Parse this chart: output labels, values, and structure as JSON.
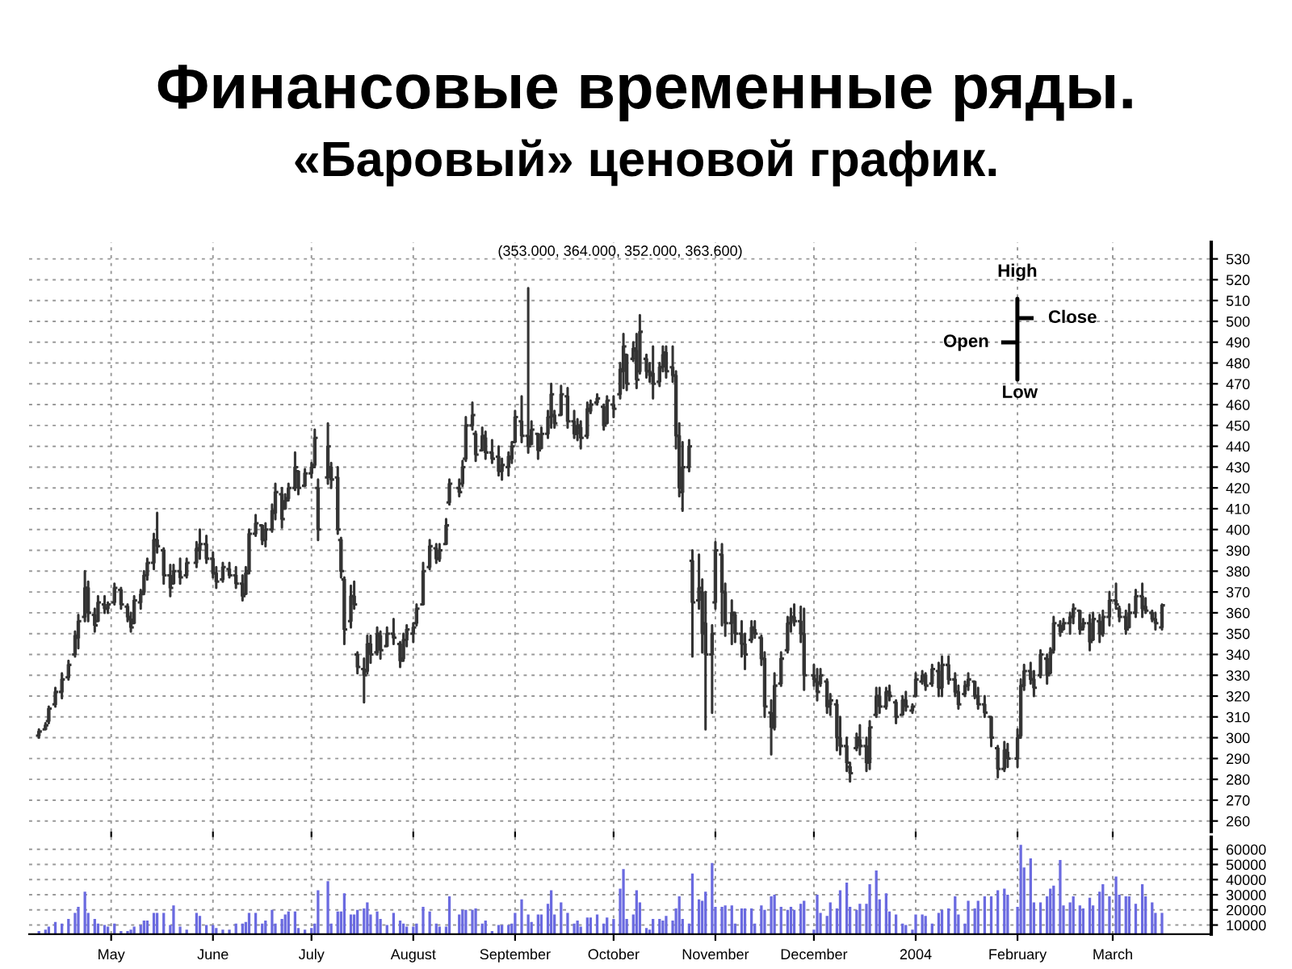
{
  "chart_data": [
    {
      "type": "candlestick",
      "title": "Финансовые временные ряды.",
      "subtitle": "«Баровый» ценовой график.",
      "annotations": [
        "(353.000, 364.000, 352.000, 363.600)",
        "High",
        "Close",
        "Open",
        "Low"
      ],
      "color": "#333333",
      "x": [
        "2003-04-09",
        "2003-04-11",
        "2003-04-12",
        "2003-04-14",
        "2003-04-16",
        "2003-04-18",
        "2003-04-20",
        "2003-04-21",
        "2003-04-23",
        "2003-04-24",
        "2003-04-26",
        "2003-04-27",
        "2003-04-29",
        "2003-04-30",
        "2003-05-02",
        "2003-05-04",
        "2003-05-06",
        "2003-05-07",
        "2003-05-08",
        "2003-05-10",
        "2003-05-11",
        "2003-05-12",
        "2003-05-14",
        "2003-05-15",
        "2003-05-17",
        "2003-05-19",
        "2003-05-20",
        "2003-05-22",
        "2003-05-24",
        "2003-05-27",
        "2003-05-28",
        "2003-05-30",
        "2003-06-01",
        "2003-06-02",
        "2003-06-04",
        "2003-06-06",
        "2003-06-08",
        "2003-06-10",
        "2003-06-11",
        "2003-06-12",
        "2003-06-14",
        "2003-06-16",
        "2003-06-17",
        "2003-06-19",
        "2003-06-20",
        "2003-06-22",
        "2003-06-23",
        "2003-06-24",
        "2003-06-26",
        "2003-06-27",
        "2003-06-29",
        "2003-07-01",
        "2003-07-02",
        "2003-07-03",
        "2003-07-06",
        "2003-07-07",
        "2003-07-09",
        "2003-07-10",
        "2003-07-11",
        "2003-07-13",
        "2003-07-14",
        "2003-07-15",
        "2003-07-17",
        "2003-07-18",
        "2003-07-19",
        "2003-07-21",
        "2003-07-22",
        "2003-07-24",
        "2003-07-26",
        "2003-07-28",
        "2003-07-29",
        "2003-07-30",
        "2003-08-01",
        "2003-08-02",
        "2003-08-04",
        "2003-08-06",
        "2003-08-08",
        "2003-08-09",
        "2003-08-11",
        "2003-08-12",
        "2003-08-15",
        "2003-08-16",
        "2003-08-17",
        "2003-08-19",
        "2003-08-20",
        "2003-08-22",
        "2003-08-23",
        "2003-08-25",
        "2003-08-27",
        "2003-08-28",
        "2003-08-30",
        "2003-08-31",
        "2003-09-01",
        "2003-09-03",
        "2003-09-05",
        "2003-09-06",
        "2003-09-08",
        "2003-09-09",
        "2003-09-11",
        "2003-09-12",
        "2003-09-13",
        "2003-09-15",
        "2003-09-17",
        "2003-09-19",
        "2003-09-20",
        "2003-09-21",
        "2003-09-23",
        "2003-09-24",
        "2003-09-26",
        "2003-09-28",
        "2003-09-29",
        "2003-10-01",
        "2003-10-03",
        "2003-10-04",
        "2003-10-05",
        "2003-10-07",
        "2003-10-08",
        "2003-10-09",
        "2003-10-11",
        "2003-10-12",
        "2003-10-13",
        "2003-10-15",
        "2003-10-16",
        "2003-10-17",
        "2003-10-19",
        "2003-10-20",
        "2003-10-21",
        "2003-10-22",
        "2003-10-24",
        "2003-10-25",
        "2003-10-27",
        "2003-10-28",
        "2003-10-29",
        "2003-10-31",
        "2003-11-01",
        "2003-11-03",
        "2003-11-04",
        "2003-11-06",
        "2003-11-07",
        "2003-11-09",
        "2003-11-10",
        "2003-11-12",
        "2003-11-13",
        "2003-11-15",
        "2003-11-16",
        "2003-11-18",
        "2003-11-19",
        "2003-11-21",
        "2003-11-23",
        "2003-11-24",
        "2003-11-25",
        "2003-11-27",
        "2003-11-28",
        "2003-12-01",
        "2003-12-02",
        "2003-12-03",
        "2003-12-05",
        "2003-12-06",
        "2003-12-08",
        "2003-12-09",
        "2003-12-11",
        "2003-12-12",
        "2003-12-14",
        "2003-12-15",
        "2003-12-17",
        "2003-12-18",
        "2003-12-20",
        "2003-12-21",
        "2003-12-23",
        "2003-12-24",
        "2003-12-26",
        "2003-12-28",
        "2003-12-29",
        "2003-12-31",
        "2004-01-01",
        "2004-01-03",
        "2004-01-04",
        "2004-01-06",
        "2004-01-08",
        "2004-01-09",
        "2004-01-11",
        "2004-01-13",
        "2004-01-14",
        "2004-01-16",
        "2004-01-17",
        "2004-01-19",
        "2004-01-20",
        "2004-01-22",
        "2004-01-24",
        "2004-01-26",
        "2004-01-28",
        "2004-01-29",
        "2004-02-01",
        "2004-02-02",
        "2004-02-03",
        "2004-02-05",
        "2004-02-06",
        "2004-02-08",
        "2004-02-10",
        "2004-02-11",
        "2004-02-12",
        "2004-02-14",
        "2004-02-15",
        "2004-02-17",
        "2004-02-18",
        "2004-02-20",
        "2004-02-21",
        "2004-02-23",
        "2004-02-24",
        "2004-02-26",
        "2004-02-27",
        "2004-02-29",
        "2004-03-02",
        "2004-03-03",
        "2004-03-05",
        "2004-03-06",
        "2004-03-08",
        "2004-03-10",
        "2004-03-11",
        "2004-03-13",
        "2004-03-14",
        "2004-03-16"
      ],
      "ohlc": [
        [
          301,
          304,
          300,
          303
        ],
        [
          304,
          307,
          304,
          306
        ],
        [
          308,
          315,
          307,
          314
        ],
        [
          316,
          324,
          315,
          322
        ],
        [
          322,
          331,
          319,
          328
        ],
        [
          329,
          337,
          328,
          335
        ],
        [
          340,
          351,
          339,
          349
        ],
        [
          348,
          359,
          343,
          356
        ],
        [
          358,
          380,
          356,
          372
        ],
        [
          372,
          375,
          356,
          360
        ],
        [
          359,
          362,
          351,
          354
        ],
        [
          356,
          368,
          356,
          365
        ],
        [
          364,
          368,
          360,
          362
        ],
        [
          362,
          365,
          360,
          364
        ],
        [
          365,
          374,
          364,
          372
        ],
        [
          371,
          372,
          362,
          364
        ],
        [
          363,
          364,
          356,
          358
        ],
        [
          357,
          360,
          351,
          353
        ],
        [
          355,
          368,
          355,
          366
        ],
        [
          365,
          371,
          362,
          369
        ],
        [
          370,
          380,
          369,
          378
        ],
        [
          378,
          386,
          376,
          384
        ],
        [
          384,
          398,
          381,
          395
        ],
        [
          395,
          408,
          389,
          392
        ],
        [
          390,
          391,
          374,
          378
        ],
        [
          378,
          383,
          368,
          372
        ],
        [
          374,
          383,
          374,
          380
        ],
        [
          380,
          386,
          374,
          377
        ],
        [
          378,
          386,
          377,
          384
        ],
        [
          384,
          394,
          382,
          391
        ],
        [
          390,
          400,
          386,
          393
        ],
        [
          393,
          397,
          384,
          386
        ],
        [
          386,
          389,
          377,
          379
        ],
        [
          379,
          382,
          372,
          375
        ],
        [
          376,
          384,
          375,
          382
        ],
        [
          381,
          384,
          377,
          378
        ],
        [
          378,
          382,
          372,
          374
        ],
        [
          374,
          378,
          366,
          368
        ],
        [
          369,
          382,
          369,
          379
        ],
        [
          380,
          400,
          379,
          398
        ],
        [
          398,
          407,
          397,
          403
        ],
        [
          402,
          402,
          393,
          395
        ],
        [
          395,
          403,
          392,
          400
        ],
        [
          400,
          412,
          399,
          409
        ],
        [
          408,
          422,
          405,
          418
        ],
        [
          417,
          420,
          401,
          405
        ],
        [
          410,
          417,
          410,
          414
        ],
        [
          415,
          422,
          414,
          420
        ],
        [
          420,
          437,
          419,
          430
        ],
        [
          428,
          428,
          417,
          420
        ],
        [
          421,
          429,
          421,
          427
        ],
        [
          427,
          432,
          425,
          430
        ],
        [
          431,
          448,
          430,
          444
        ],
        [
          420,
          424,
          395,
          400
        ],
        [
          425,
          451,
          422,
          440
        ],
        [
          430,
          432,
          420,
          424
        ],
        [
          425,
          430,
          398,
          400
        ],
        [
          395,
          396,
          377,
          380
        ],
        [
          376,
          377,
          345,
          352
        ],
        [
          356,
          373,
          353,
          368
        ],
        [
          368,
          375,
          362,
          364
        ],
        [
          340,
          341,
          331,
          334
        ],
        [
          333,
          338,
          317,
          330
        ],
        [
          332,
          349,
          331,
          345
        ],
        [
          345,
          349,
          336,
          340
        ],
        [
          341,
          353,
          340,
          350
        ],
        [
          349,
          351,
          338,
          342
        ],
        [
          344,
          353,
          344,
          350
        ],
        [
          350,
          357,
          345,
          348
        ],
        [
          345,
          346,
          334,
          337
        ],
        [
          338,
          350,
          337,
          347
        ],
        [
          347,
          354,
          344,
          352
        ],
        [
          350,
          355,
          346,
          353
        ],
        [
          355,
          364,
          354,
          362
        ],
        [
          364,
          384,
          364,
          380
        ],
        [
          382,
          395,
          381,
          392
        ],
        [
          391,
          393,
          384,
          386
        ],
        [
          386,
          393,
          385,
          390
        ],
        [
          393,
          405,
          393,
          402
        ],
        [
          413,
          424,
          412,
          422
        ],
        [
          420,
          424,
          416,
          418
        ],
        [
          422,
          433,
          421,
          430
        ],
        [
          434,
          454,
          433,
          450
        ],
        [
          450,
          461,
          448,
          455
        ],
        [
          446,
          447,
          433,
          436
        ],
        [
          438,
          449,
          438,
          445
        ],
        [
          444,
          447,
          434,
          437
        ],
        [
          437,
          443,
          432,
          434
        ],
        [
          435,
          440,
          426,
          428
        ],
        [
          428,
          434,
          424,
          431
        ],
        [
          430,
          437,
          426,
          435
        ],
        [
          434,
          442,
          432,
          440
        ],
        [
          442,
          457,
          442,
          454
        ],
        [
          452,
          464,
          442,
          445
        ],
        [
          445,
          516,
          437,
          440
        ],
        [
          441,
          452,
          441,
          448
        ],
        [
          446,
          446,
          434,
          438
        ],
        [
          439,
          449,
          439,
          446
        ],
        [
          446,
          457,
          444,
          454
        ],
        [
          454,
          470,
          449,
          465
        ],
        [
          455,
          457,
          449,
          451
        ],
        [
          455,
          469,
          455,
          465
        ],
        [
          464,
          468,
          449,
          452
        ],
        [
          452,
          457,
          444,
          446
        ],
        [
          446,
          453,
          443,
          450
        ],
        [
          449,
          452,
          439,
          444
        ],
        [
          445,
          461,
          444,
          458
        ],
        [
          457,
          462,
          456,
          460
        ],
        [
          461,
          465,
          460,
          463
        ],
        [
          459,
          460,
          448,
          450
        ],
        [
          451,
          464,
          451,
          462
        ],
        [
          460,
          464,
          454,
          458
        ],
        [
          465,
          480,
          463,
          477
        ],
        [
          476,
          494,
          468,
          488
        ],
        [
          484,
          484,
          467,
          470
        ],
        [
          482,
          490,
          481,
          487
        ],
        [
          486,
          494,
          468,
          472
        ],
        [
          476,
          503,
          475,
          495
        ],
        [
          482,
          484,
          473,
          476
        ],
        [
          476,
          480,
          471,
          474
        ],
        [
          475,
          488,
          463,
          470
        ],
        [
          471,
          480,
          469,
          478
        ],
        [
          478,
          488,
          476,
          484
        ],
        [
          485,
          488,
          473,
          476
        ],
        [
          478,
          488,
          471,
          474
        ],
        [
          474,
          476,
          439,
          445
        ],
        [
          445,
          451,
          416,
          420
        ],
        [
          418,
          442,
          409,
          430
        ],
        [
          430,
          443,
          428,
          440
        ],
        [
          385,
          390,
          339,
          365
        ],
        [
          366,
          388,
          362,
          372
        ],
        [
          370,
          376,
          341,
          350
        ],
        [
          355,
          370,
          304,
          340
        ],
        [
          340,
          354,
          312,
          350
        ],
        [
          365,
          394,
          362,
          390
        ],
        [
          388,
          393,
          354,
          370
        ],
        [
          370,
          374,
          349,
          355
        ],
        [
          355,
          366,
          345,
          360
        ],
        [
          359,
          360,
          346,
          350
        ],
        [
          350,
          356,
          339,
          345
        ],
        [
          345,
          350,
          333,
          340
        ],
        [
          347,
          356,
          346,
          353
        ],
        [
          352,
          356,
          348,
          350
        ],
        [
          348,
          349,
          335,
          338
        ],
        [
          338,
          341,
          310,
          315
        ],
        [
          312,
          318,
          292,
          305
        ],
        [
          305,
          331,
          304,
          325
        ],
        [
          326,
          341,
          325,
          338
        ],
        [
          342,
          358,
          341,
          355
        ],
        [
          355,
          362,
          351,
          358
        ],
        [
          358,
          364,
          354,
          356
        ],
        [
          356,
          363,
          346,
          350
        ],
        [
          350,
          362,
          323,
          330
        ],
        [
          330,
          335,
          325,
          328
        ],
        [
          327,
          333,
          318,
          322
        ],
        [
          326,
          333,
          325,
          330
        ],
        [
          327,
          328,
          312,
          315
        ],
        [
          316,
          321,
          311,
          318
        ],
        [
          316,
          318,
          294,
          300
        ],
        [
          300,
          310,
          292,
          296
        ],
        [
          296,
          300,
          284,
          288
        ],
        [
          286,
          288,
          279,
          283
        ],
        [
          295,
          302,
          294,
          300
        ],
        [
          299,
          306,
          292,
          296
        ],
        [
          296,
          300,
          284,
          288
        ],
        [
          288,
          308,
          285,
          305
        ],
        [
          311,
          324,
          310,
          320
        ],
        [
          320,
          324,
          312,
          315
        ],
        [
          315,
          324,
          314,
          322
        ],
        [
          322,
          325,
          318,
          320
        ],
        [
          317,
          318,
          307,
          310
        ],
        [
          311,
          320,
          311,
          318
        ],
        [
          318,
          322,
          313,
          315
        ],
        [
          313,
          316,
          312,
          315
        ],
        [
          320,
          331,
          320,
          328
        ],
        [
          327,
          332,
          326,
          330
        ],
        [
          330,
          331,
          323,
          325
        ],
        [
          326,
          335,
          325,
          333
        ],
        [
          332,
          336,
          320,
          324
        ],
        [
          324,
          339,
          320,
          335
        ],
        [
          335,
          339,
          326,
          328
        ],
        [
          328,
          331,
          320,
          322
        ],
        [
          322,
          325,
          314,
          316
        ],
        [
          321,
          327,
          320,
          325
        ],
        [
          325,
          331,
          323,
          328
        ],
        [
          327,
          327,
          319,
          320
        ],
        [
          320,
          324,
          314,
          316
        ],
        [
          316,
          320,
          310,
          312
        ],
        [
          310,
          310,
          296,
          300
        ],
        [
          295,
          296,
          281,
          285
        ],
        [
          285,
          298,
          284,
          294
        ],
        [
          293,
          297,
          286,
          290
        ],
        [
          290,
          304,
          286,
          300
        ],
        [
          301,
          328,
          300,
          325
        ],
        [
          325,
          335,
          323,
          332
        ],
        [
          332,
          336,
          326,
          328
        ],
        [
          328,
          332,
          320,
          324
        ],
        [
          330,
          342,
          329,
          340
        ],
        [
          338,
          340,
          326,
          330
        ],
        [
          331,
          343,
          331,
          341
        ],
        [
          342,
          358,
          341,
          355
        ],
        [
          354,
          356,
          349,
          351
        ],
        [
          352,
          357,
          352,
          355
        ],
        [
          355,
          360,
          350,
          358
        ],
        [
          358,
          364,
          355,
          362
        ],
        [
          361,
          361,
          350,
          352
        ],
        [
          353,
          357,
          352,
          355
        ],
        [
          355,
          359,
          342,
          346
        ],
        [
          347,
          360,
          347,
          357
        ],
        [
          356,
          359,
          346,
          350
        ],
        [
          350,
          361,
          349,
          358
        ],
        [
          358,
          370,
          354,
          366
        ],
        [
          366,
          374,
          362,
          364
        ],
        [
          362,
          363,
          356,
          358
        ],
        [
          358,
          361,
          350,
          352
        ],
        [
          353,
          364,
          353,
          360
        ],
        [
          360,
          371,
          358,
          368
        ],
        [
          368,
          374,
          358,
          362
        ],
        [
          363,
          367,
          360,
          361
        ],
        [
          360,
          361,
          356,
          357
        ],
        [
          357,
          360,
          352,
          355
        ],
        [
          353,
          364,
          352,
          363.6
        ]
      ],
      "xlim": [
        "2003-04-06",
        "2004-03-31"
      ],
      "xticks": [
        {
          "value": "2003-05-01",
          "label": null
        },
        {
          "value": "2003-06-01",
          "label": null
        },
        {
          "value": "2003-07-01",
          "label": null
        },
        {
          "value": "2003-08-01",
          "label": null
        },
        {
          "value": "2003-09-01",
          "label": null
        },
        {
          "value": "2003-10-01",
          "label": null
        },
        {
          "value": "2003-11-01",
          "label": null
        },
        {
          "value": "2003-12-01",
          "label": null
        },
        {
          "value": "2004-01-01",
          "label": null
        },
        {
          "value": "2004-02-01",
          "label": null
        },
        {
          "value": "2004-03-01",
          "label": null
        }
      ],
      "ylim": [
        255,
        538
      ],
      "yticks": [
        260,
        270,
        280,
        290,
        300,
        310,
        320,
        330,
        340,
        350,
        360,
        370,
        380,
        390,
        400,
        410,
        420,
        430,
        440,
        450,
        460,
        470,
        480,
        490,
        500,
        510,
        520,
        530
      ],
      "grid": true,
      "tick_labels": "y"
    },
    {
      "type": "bar",
      "color": "#6a6ae0",
      "x": [
        "2003-04-09",
        "2003-04-11",
        "2003-04-12",
        "2003-04-14",
        "2003-04-16",
        "2003-04-18",
        "2003-04-20",
        "2003-04-21",
        "2003-04-23",
        "2003-04-24",
        "2003-04-26",
        "2003-04-27",
        "2003-04-29",
        "2003-04-30",
        "2003-05-02",
        "2003-05-04",
        "2003-05-06",
        "2003-05-07",
        "2003-05-08",
        "2003-05-10",
        "2003-05-11",
        "2003-05-12",
        "2003-05-14",
        "2003-05-15",
        "2003-05-17",
        "2003-05-19",
        "2003-05-20",
        "2003-05-22",
        "2003-05-24",
        "2003-05-27",
        "2003-05-28",
        "2003-05-30",
        "2003-06-01",
        "2003-06-02",
        "2003-06-04",
        "2003-06-06",
        "2003-06-08",
        "2003-06-10",
        "2003-06-11",
        "2003-06-12",
        "2003-06-14",
        "2003-06-16",
        "2003-06-17",
        "2003-06-19",
        "2003-06-20",
        "2003-06-22",
        "2003-06-23",
        "2003-06-24",
        "2003-06-26",
        "2003-06-27",
        "2003-06-29",
        "2003-07-01",
        "2003-07-02",
        "2003-07-03",
        "2003-07-06",
        "2003-07-07",
        "2003-07-09",
        "2003-07-10",
        "2003-07-11",
        "2003-07-13",
        "2003-07-14",
        "2003-07-15",
        "2003-07-17",
        "2003-07-18",
        "2003-07-19",
        "2003-07-21",
        "2003-07-22",
        "2003-07-24",
        "2003-07-26",
        "2003-07-28",
        "2003-07-29",
        "2003-07-30",
        "2003-08-01",
        "2003-08-02",
        "2003-08-04",
        "2003-08-06",
        "2003-08-08",
        "2003-08-09",
        "2003-08-11",
        "2003-08-12",
        "2003-08-15",
        "2003-08-16",
        "2003-08-17",
        "2003-08-19",
        "2003-08-20",
        "2003-08-22",
        "2003-08-23",
        "2003-08-25",
        "2003-08-27",
        "2003-08-28",
        "2003-08-30",
        "2003-08-31",
        "2003-09-01",
        "2003-09-03",
        "2003-09-05",
        "2003-09-06",
        "2003-09-08",
        "2003-09-09",
        "2003-09-11",
        "2003-09-12",
        "2003-09-13",
        "2003-09-15",
        "2003-09-17",
        "2003-09-19",
        "2003-09-20",
        "2003-09-21",
        "2003-09-23",
        "2003-09-24",
        "2003-09-26",
        "2003-09-28",
        "2003-09-29",
        "2003-10-01",
        "2003-10-03",
        "2003-10-04",
        "2003-10-05",
        "2003-10-07",
        "2003-10-08",
        "2003-10-09",
        "2003-10-11",
        "2003-10-12",
        "2003-10-13",
        "2003-10-15",
        "2003-10-16",
        "2003-10-17",
        "2003-10-19",
        "2003-10-20",
        "2003-10-21",
        "2003-10-22",
        "2003-10-24",
        "2003-10-25",
        "2003-10-27",
        "2003-10-28",
        "2003-10-29",
        "2003-10-31",
        "2003-11-01",
        "2003-11-03",
        "2003-11-04",
        "2003-11-06",
        "2003-11-07",
        "2003-11-09",
        "2003-11-10",
        "2003-11-12",
        "2003-11-13",
        "2003-11-15",
        "2003-11-16",
        "2003-11-18",
        "2003-11-19",
        "2003-11-21",
        "2003-11-23",
        "2003-11-24",
        "2003-11-25",
        "2003-11-27",
        "2003-11-28",
        "2003-12-01",
        "2003-12-02",
        "2003-12-03",
        "2003-12-05",
        "2003-12-06",
        "2003-12-08",
        "2003-12-09",
        "2003-12-11",
        "2003-12-12",
        "2003-12-14",
        "2003-12-15",
        "2003-12-17",
        "2003-12-18",
        "2003-12-20",
        "2003-12-21",
        "2003-12-23",
        "2003-12-24",
        "2003-12-26",
        "2003-12-28",
        "2003-12-29",
        "2003-12-31",
        "2004-01-01",
        "2004-01-03",
        "2004-01-04",
        "2004-01-06",
        "2004-01-08",
        "2004-01-09",
        "2004-01-11",
        "2004-01-13",
        "2004-01-14",
        "2004-01-16",
        "2004-01-17",
        "2004-01-19",
        "2004-01-20",
        "2004-01-22",
        "2004-01-24",
        "2004-01-26",
        "2004-01-28",
        "2004-01-29",
        "2004-02-01",
        "2004-02-02",
        "2004-02-03",
        "2004-02-05",
        "2004-02-06",
        "2004-02-08",
        "2004-02-10",
        "2004-02-11",
        "2004-02-12",
        "2004-02-14",
        "2004-02-15",
        "2004-02-17",
        "2004-02-18",
        "2004-02-20",
        "2004-02-21",
        "2004-02-23",
        "2004-02-24",
        "2004-02-26",
        "2004-02-27",
        "2004-02-29",
        "2004-03-02",
        "2004-03-03",
        "2004-03-05",
        "2004-03-06",
        "2004-03-08",
        "2004-03-10",
        "2004-03-11",
        "2004-03-13",
        "2004-03-14",
        "2004-03-16"
      ],
      "values": [
        6000,
        7000,
        9000,
        12000,
        11000,
        14000,
        18000,
        22000,
        32000,
        18000,
        14000,
        11000,
        10000,
        9000,
        11000,
        6000,
        6000,
        7000,
        9000,
        10000,
        13000,
        13000,
        18000,
        18000,
        18000,
        10000,
        23000,
        9000,
        7000,
        18000,
        16000,
        10000,
        10000,
        8000,
        7000,
        7000,
        11000,
        11000,
        12000,
        18000,
        18000,
        11000,
        13000,
        20000,
        11000,
        14000,
        17000,
        19000,
        19000,
        8000,
        7000,
        8000,
        11000,
        33000,
        39000,
        11000,
        19000,
        19000,
        31000,
        17000,
        17000,
        20000,
        21000,
        25000,
        17000,
        19000,
        14000,
        10000,
        18000,
        13000,
        11000,
        9000,
        9000,
        11000,
        22000,
        19000,
        11000,
        9000,
        9000,
        29000,
        17000,
        20000,
        20000,
        20000,
        21000,
        11000,
        13000,
        6000,
        10000,
        10000,
        10000,
        11000,
        18000,
        27000,
        17000,
        12000,
        17000,
        17000,
        24000,
        33000,
        17000,
        25000,
        18000,
        11000,
        13000,
        9000,
        15000,
        15000,
        17000,
        11000,
        15000,
        14000,
        34000,
        47000,
        14000,
        17000,
        33000,
        25000,
        8000,
        7000,
        14000,
        14000,
        13000,
        16000,
        13000,
        21000,
        29000,
        14000,
        11000,
        44000,
        27000,
        26000,
        32000,
        51000,
        22000,
        22000,
        23000,
        23000,
        11000,
        21000,
        21000,
        21000,
        11000,
        23000,
        20000,
        29000,
        30000,
        22000,
        20000,
        22000,
        20000,
        24000,
        26000,
        7000,
        30000,
        18000,
        16000,
        25000,
        21000,
        33000,
        38000,
        22000,
        20000,
        24000,
        24000,
        37000,
        46000,
        27000,
        31000,
        19000,
        17000,
        11000,
        10000,
        7000,
        17000,
        17000,
        16000,
        11000,
        18000,
        20000,
        21000,
        29000,
        17000,
        11000,
        26000,
        21000,
        26000,
        29000,
        29000,
        33000,
        34000,
        30000,
        22000,
        63000,
        48000,
        54000,
        25000,
        25000,
        29000,
        34000,
        36000,
        53000,
        23000,
        25000,
        29000,
        23000,
        21000,
        28000,
        23000,
        32000,
        37000,
        29000,
        42000,
        30000,
        29000,
        29000,
        24000,
        37000,
        29000,
        25000,
        18000,
        18000
      ],
      "xlim": [
        "2003-04-06",
        "2004-03-31"
      ],
      "xticks": [
        {
          "value": "2003-05-01",
          "label": "May"
        },
        {
          "value": "2003-06-01",
          "label": "June"
        },
        {
          "value": "2003-07-01",
          "label": "July"
        },
        {
          "value": "2003-08-01",
          "label": "August"
        },
        {
          "value": "2003-09-01",
          "label": "September"
        },
        {
          "value": "2003-10-01",
          "label": "October"
        },
        {
          "value": "2003-11-01",
          "label": "November"
        },
        {
          "value": "2003-12-01",
          "label": "December"
        },
        {
          "value": "2004-01-01",
          "label": "2004"
        },
        {
          "value": "2004-02-01",
          "label": "February"
        },
        {
          "value": "2004-03-01",
          "label": "March"
        }
      ],
      "ylim": [
        4000,
        68000
      ],
      "yticks": [
        10000,
        20000,
        30000,
        40000,
        50000,
        60000
      ],
      "grid": true
    }
  ]
}
